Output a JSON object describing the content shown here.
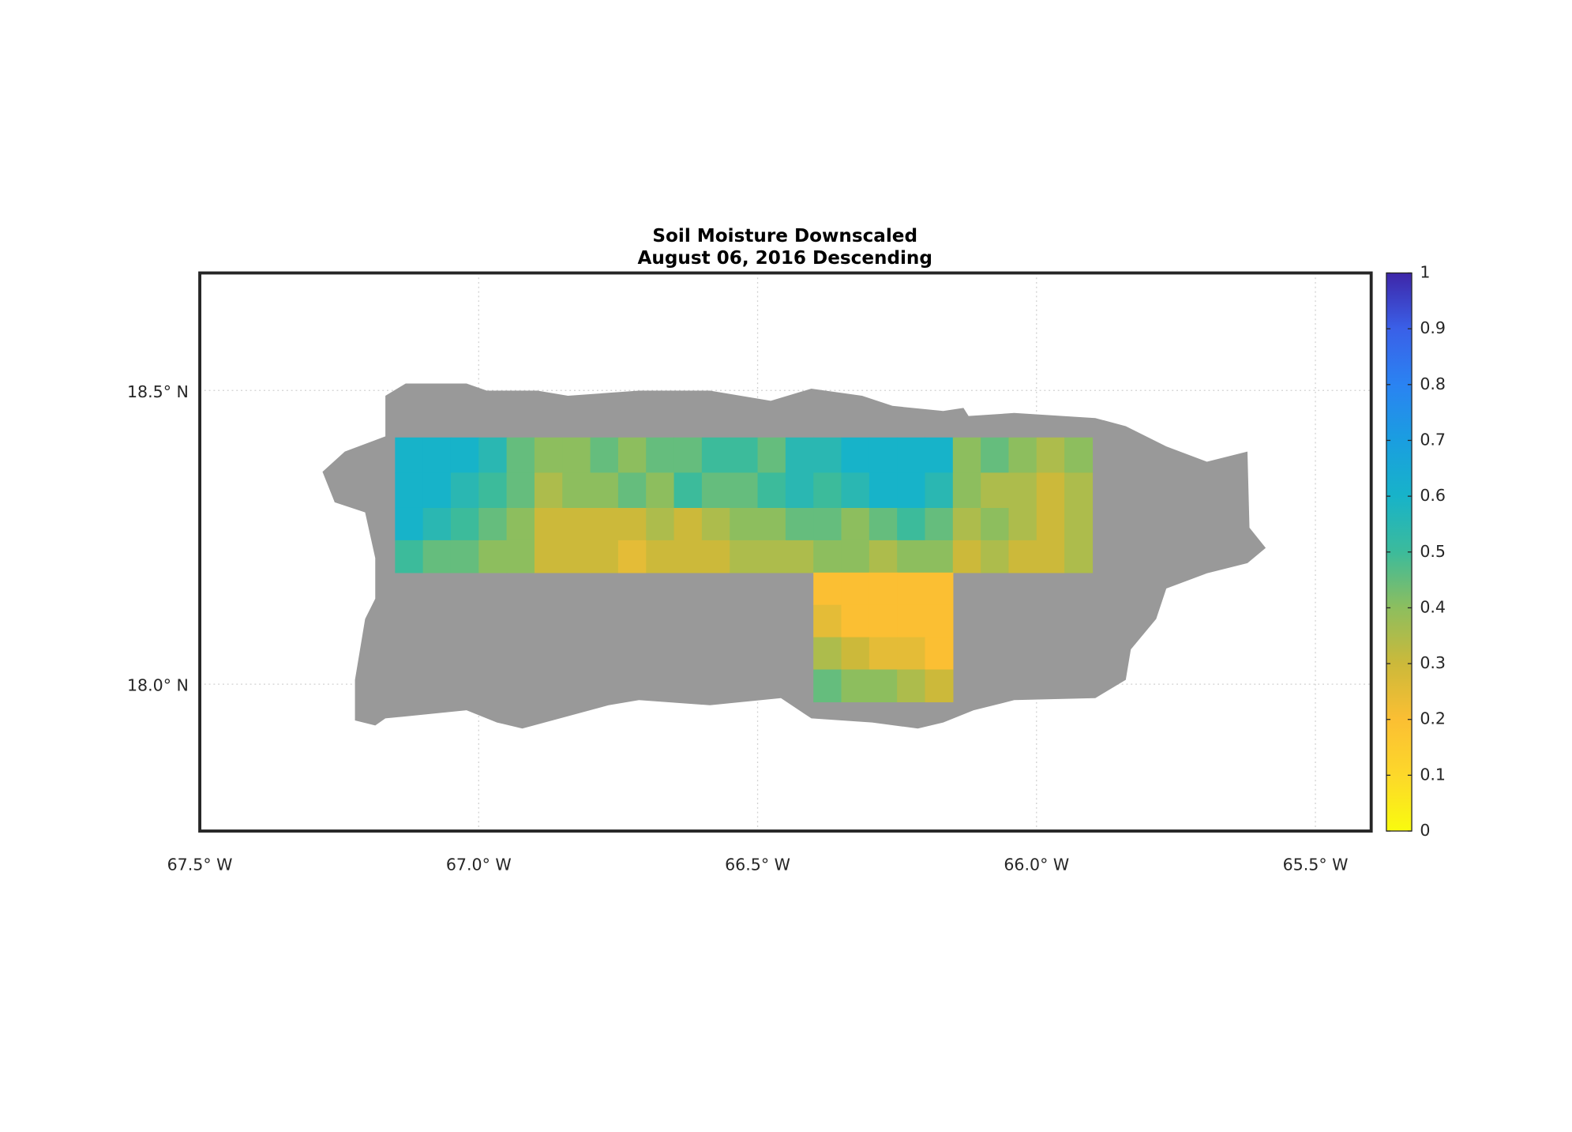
{
  "title": "Soil Moisture Downscaled",
  "subtitle": "August 06, 2016 Descending",
  "xlim": [
    67.5,
    65.4
  ],
  "ylim": [
    17.75,
    18.7
  ],
  "xticks": [
    {
      "value": 67.5,
      "label": "67.5° W"
    },
    {
      "value": 67.0,
      "label": "67.0° W"
    },
    {
      "value": 66.5,
      "label": "66.5° W"
    },
    {
      "value": 66.0,
      "label": "66.0° W"
    },
    {
      "value": 65.5,
      "label": "65.5° W"
    }
  ],
  "yticks": [
    {
      "value": 18.5,
      "label": "18.5° N"
    },
    {
      "value": 18.0,
      "label": "18.0° N"
    }
  ],
  "grid": true,
  "colorbar": {
    "lim": [
      0,
      1
    ],
    "ticks": [
      0,
      0.1,
      0.2,
      0.3,
      0.4,
      0.5,
      0.6,
      0.7,
      0.8,
      0.9,
      1
    ],
    "colormap": [
      "#f9fb0e",
      "#fdd82a",
      "#fbbf33",
      "#ccb93a",
      "#8dbe5e",
      "#3cbb9b",
      "#17b3c9",
      "#1a9ee0",
      "#2a83f2",
      "#3a60e8",
      "#3e26a8"
    ]
  },
  "soil_moisture": {
    "lon_edges": [
      67.15,
      67.1,
      67.05,
      67.0,
      66.95,
      66.9,
      66.85,
      66.8,
      66.75,
      66.7,
      66.65,
      66.6,
      66.55,
      66.5,
      66.45,
      66.4,
      66.35,
      66.3,
      66.25,
      66.2,
      66.15,
      66.1,
      66.05,
      66.0,
      65.95,
      65.9
    ],
    "lat_edges": [
      18.42,
      18.36,
      18.3,
      18.245,
      18.19,
      18.135,
      18.08,
      18.025,
      17.97
    ],
    "values": [
      [
        0.6,
        0.6,
        0.6,
        0.55,
        0.45,
        0.4,
        0.4,
        0.45,
        0.4,
        0.45,
        0.45,
        0.5,
        0.5,
        0.45,
        0.55,
        0.55,
        0.6,
        0.6,
        0.6,
        0.6,
        0.4,
        0.45,
        0.4,
        0.35,
        0.4
      ],
      [
        0.6,
        0.6,
        0.55,
        0.5,
        0.45,
        0.35,
        0.4,
        0.4,
        0.45,
        0.4,
        0.5,
        0.45,
        0.45,
        0.5,
        0.55,
        0.5,
        0.55,
        0.6,
        0.6,
        0.55,
        0.4,
        0.35,
        0.35,
        0.3,
        0.35
      ],
      [
        0.6,
        0.55,
        0.5,
        0.45,
        0.4,
        0.3,
        0.3,
        0.3,
        0.3,
        0.35,
        0.3,
        0.35,
        0.4,
        0.4,
        0.45,
        0.45,
        0.4,
        0.45,
        0.5,
        0.45,
        0.35,
        0.4,
        0.35,
        0.3,
        0.35
      ],
      [
        0.5,
        0.45,
        0.45,
        0.4,
        0.4,
        0.3,
        0.3,
        0.3,
        0.25,
        0.3,
        0.3,
        0.3,
        0.35,
        0.35,
        0.35,
        0.4,
        0.4,
        0.35,
        0.4,
        0.4,
        0.3,
        0.35,
        0.3,
        0.3,
        0.35
      ],
      [
        null,
        null,
        null,
        null,
        null,
        null,
        null,
        null,
        null,
        null,
        null,
        null,
        null,
        null,
        null,
        0.2,
        0.2,
        0.2,
        0.2,
        0.2,
        null,
        null,
        null,
        null,
        null
      ],
      [
        null,
        null,
        null,
        null,
        null,
        null,
        null,
        null,
        null,
        null,
        null,
        null,
        null,
        null,
        null,
        0.25,
        0.2,
        0.2,
        0.2,
        0.2,
        null,
        null,
        null,
        null,
        null
      ],
      [
        null,
        null,
        null,
        null,
        null,
        null,
        null,
        null,
        null,
        null,
        null,
        null,
        null,
        null,
        null,
        0.35,
        0.3,
        0.25,
        0.25,
        0.2,
        null,
        null,
        null,
        null,
        null
      ],
      [
        null,
        null,
        null,
        null,
        null,
        null,
        null,
        null,
        null,
        null,
        null,
        null,
        null,
        null,
        null,
        0.45,
        0.4,
        0.4,
        0.35,
        0.3,
        null,
        null,
        null,
        null,
        null
      ]
    ]
  }
}
